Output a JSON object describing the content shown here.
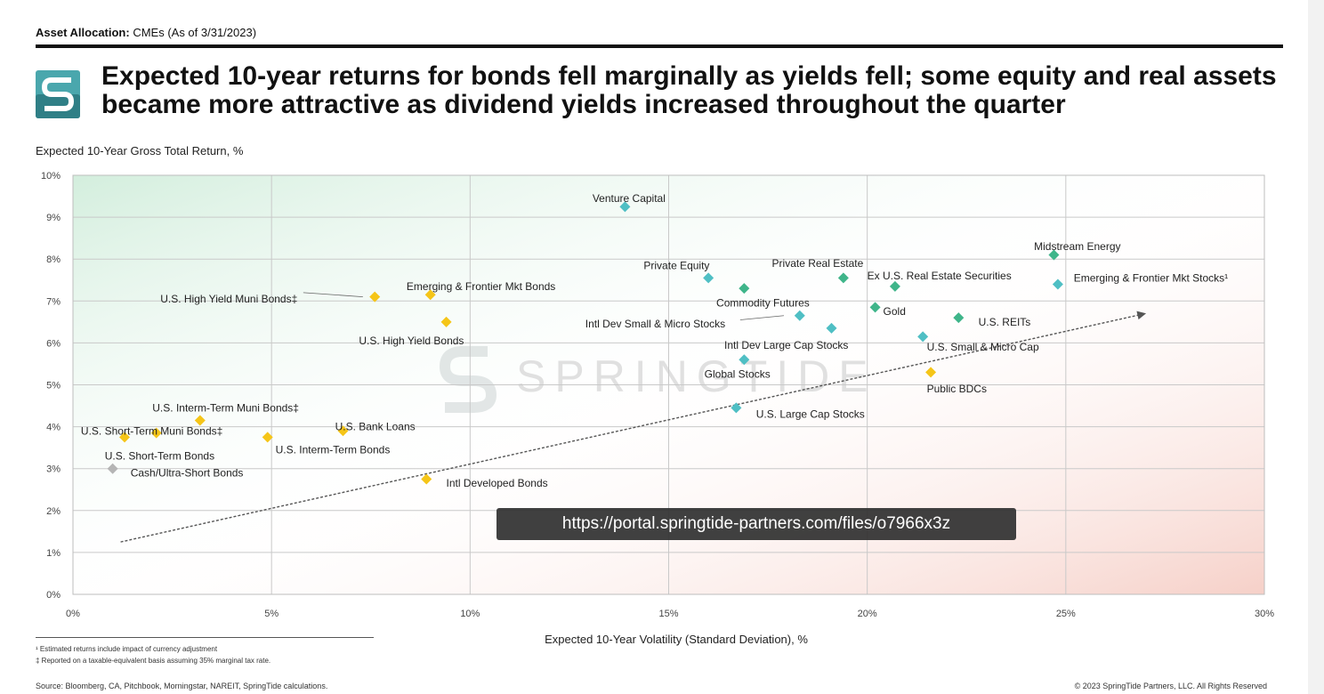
{
  "header": {
    "section_label_bold": "Asset Allocation:",
    "section_label_rest": " CMEs (As of 3/31/2023)",
    "title": "Expected 10-year returns for bonds fell marginally as yields fell; some equity and real assets became more attractive as dividend yields increased throughout the quarter"
  },
  "watermark": "SPRINGTIDE",
  "footnotes": {
    "note1": "¹ Estimated returns include impact of currency adjustment",
    "note2": "‡ Reported on a taxable-equivalent basis assuming 35% marginal tax rate.",
    "source": "Source: Bloomberg, CA, Pitchbook, Morningstar, NAREIT, SpringTide calculations.",
    "copyright": "© 2023 SpringTide Partners, LLC. All Rights Reserved"
  },
  "tooltip": {
    "url": "https://portal.springtide-partners.com/files/o7966x3z"
  },
  "colors": {
    "bond": "#f5c518",
    "equity": "#4fbfc4",
    "real": "#3fb58a",
    "cash": "#b5b5b5",
    "trend": "#555555"
  },
  "chart_data": {
    "type": "scatter",
    "title": "",
    "xlabel": "Expected 10-Year Volatility (Standard Deviation), %",
    "ylabel": "Expected 10-Year Gross Total Return, %",
    "xlim": [
      0,
      30
    ],
    "ylim": [
      0,
      10
    ],
    "x_ticks": [
      "0%",
      "5%",
      "10%",
      "15%",
      "20%",
      "25%",
      "30%"
    ],
    "y_ticks": [
      "0%",
      "1%",
      "2%",
      "3%",
      "4%",
      "5%",
      "6%",
      "7%",
      "8%",
      "9%",
      "10%"
    ],
    "grid": true,
    "trend_line": {
      "from": [
        1.2,
        1.25
      ],
      "to": [
        27,
        6.7
      ]
    },
    "points": [
      {
        "label": "Venture Capital",
        "x": 13.9,
        "y": 9.25,
        "group": "equity",
        "lx": 14.0,
        "ly": 9.45,
        "anchor": "middle"
      },
      {
        "label": "Midstream Energy",
        "x": 24.7,
        "y": 8.1,
        "group": "real",
        "lx": 24.2,
        "ly": 8.3,
        "anchor": "start"
      },
      {
        "label": "Emerging & Frontier Mkt Stocks¹",
        "x": 24.8,
        "y": 7.4,
        "group": "equity",
        "lx": 25.2,
        "ly": 7.55,
        "anchor": "start"
      },
      {
        "label": "Private Equity",
        "x": 16.0,
        "y": 7.55,
        "group": "equity",
        "lx": 15.2,
        "ly": 7.85,
        "anchor": "middle"
      },
      {
        "label": "Commodity Futures",
        "x": 16.9,
        "y": 7.3,
        "group": "real",
        "lx": 16.2,
        "ly": 6.95,
        "anchor": "start"
      },
      {
        "label": "Private Real Estate",
        "x": 19.4,
        "y": 7.55,
        "group": "real",
        "lx": 17.6,
        "ly": 7.9,
        "anchor": "start"
      },
      {
        "label": "Ex U.S. Real Estate Securities",
        "x": 20.7,
        "y": 7.35,
        "group": "real",
        "lx": 20.0,
        "ly": 7.6,
        "anchor": "start"
      },
      {
        "label": "Gold",
        "x": 20.2,
        "y": 6.85,
        "group": "real",
        "lx": 20.4,
        "ly": 6.75,
        "anchor": "start"
      },
      {
        "label": "Intl Dev Small & Micro Stocks",
        "x": 18.3,
        "y": 6.65,
        "group": "equity",
        "lx": 12.9,
        "ly": 6.45,
        "anchor": "start"
      },
      {
        "label": "U.S. REITs",
        "x": 22.3,
        "y": 6.6,
        "group": "real",
        "lx": 22.8,
        "ly": 6.5,
        "anchor": "start"
      },
      {
        "label": "Intl Dev Large Cap Stocks",
        "x": 19.1,
        "y": 6.35,
        "group": "equity",
        "lx": 16.4,
        "ly": 5.95,
        "anchor": "start"
      },
      {
        "label": "U.S. Small & Micro Cap",
        "x": 21.4,
        "y": 6.15,
        "group": "equity",
        "lx": 21.5,
        "ly": 5.9,
        "anchor": "start"
      },
      {
        "label": "Global Stocks",
        "x": 16.9,
        "y": 5.6,
        "group": "equity",
        "lx": 15.9,
        "ly": 5.25,
        "anchor": "start"
      },
      {
        "label": "Public BDCs",
        "x": 21.6,
        "y": 5.3,
        "group": "bond",
        "lx": 21.5,
        "ly": 4.9,
        "anchor": "start"
      },
      {
        "label": "U.S. Large Cap Stocks",
        "x": 16.7,
        "y": 4.45,
        "group": "equity",
        "lx": 17.2,
        "ly": 4.3,
        "anchor": "start"
      },
      {
        "label": "U.S. High Yield Muni Bonds‡",
        "x": 7.6,
        "y": 7.1,
        "group": "bond",
        "lx": 2.2,
        "ly": 7.05,
        "anchor": "start"
      },
      {
        "label": "Emerging & Frontier Mkt Bonds",
        "x": 9.0,
        "y": 7.15,
        "group": "bond",
        "lx": 8.4,
        "ly": 7.35,
        "anchor": "start"
      },
      {
        "label": "U.S. High Yield Bonds",
        "x": 9.4,
        "y": 6.5,
        "group": "bond",
        "lx": 7.2,
        "ly": 6.05,
        "anchor": "start"
      },
      {
        "label": "U.S. Interm-Term Muni Bonds‡",
        "x": 3.2,
        "y": 4.15,
        "group": "bond",
        "lx": 2.0,
        "ly": 4.45,
        "anchor": "start"
      },
      {
        "label": "U.S. Short-Term Muni Bonds‡",
        "x": 2.1,
        "y": 3.85,
        "group": "bond",
        "lx": 0.2,
        "ly": 3.9,
        "anchor": "start"
      },
      {
        "label": "U.S. Bank Loans",
        "x": 6.8,
        "y": 3.9,
        "group": "bond",
        "lx": 6.6,
        "ly": 4.0,
        "anchor": "start"
      },
      {
        "label": "U.S. Interm-Term Bonds",
        "x": 4.9,
        "y": 3.75,
        "group": "bond",
        "lx": 5.1,
        "ly": 3.45,
        "anchor": "start"
      },
      {
        "label": "U.S. Short-Term Bonds",
        "x": 1.3,
        "y": 3.75,
        "group": "bond",
        "lx": 0.8,
        "ly": 3.3,
        "anchor": "start"
      },
      {
        "label": "Cash/Ultra-Short Bonds",
        "x": 1.0,
        "y": 3.0,
        "group": "cash",
        "lx": 1.45,
        "ly": 2.9,
        "anchor": "start"
      },
      {
        "label": "Intl Developed Bonds",
        "x": 8.9,
        "y": 2.75,
        "group": "bond",
        "lx": 9.4,
        "ly": 2.65,
        "anchor": "start"
      }
    ],
    "leader_lines": [
      {
        "from": [
          7.3,
          7.1
        ],
        "to": [
          5.8,
          7.2
        ]
      },
      {
        "from": [
          17.9,
          6.65
        ],
        "to": [
          16.8,
          6.55
        ]
      }
    ]
  }
}
